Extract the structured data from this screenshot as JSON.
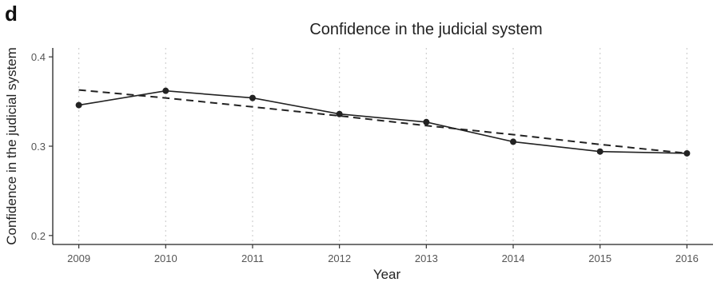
{
  "panel_label": "d",
  "chart_data": {
    "type": "line",
    "title": "Confidence in the judicial system",
    "xlabel": "Year",
    "ylabel": "Confidence in the judicial system",
    "x": [
      2009,
      2010,
      2011,
      2012,
      2013,
      2014,
      2015,
      2016
    ],
    "x_tick_labels": [
      "2009",
      "2010",
      "2011",
      "2012",
      "2013",
      "2014",
      "2015",
      "2016"
    ],
    "y_ticks": [
      0.2,
      0.3,
      0.4
    ],
    "y_tick_labels": [
      "0.2",
      "0.3",
      "0.4"
    ],
    "xlim": [
      2008.7,
      2016.3
    ],
    "ylim": [
      0.19,
      0.41
    ],
    "series": [
      {
        "style": "solid-line-with-points",
        "color": "#222222",
        "values": [
          0.346,
          0.362,
          0.354,
          0.336,
          0.327,
          0.305,
          0.294,
          0.292
        ]
      },
      {
        "style": "dashed-trend",
        "color": "#222222",
        "values": [
          0.363,
          0.354,
          0.344,
          0.334,
          0.323,
          0.313,
          0.302,
          0.292
        ]
      }
    ],
    "vertical_gridlines": "dotted-at-x-ticks",
    "horizontal_gridlines": false,
    "legend": "none"
  }
}
